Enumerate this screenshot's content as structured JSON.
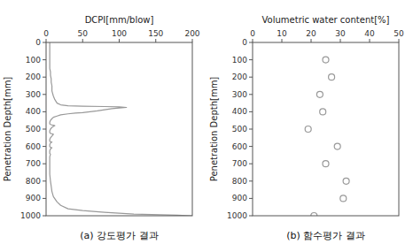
{
  "chart_data": [
    {
      "type": "line",
      "title": "(a)  강도평가  결과",
      "x_label": "DCPI[mm/blow]",
      "y_label": "Penetration Depth[mm]",
      "x": [
        5,
        5,
        5,
        5,
        5,
        5,
        5,
        6,
        6,
        7,
        7,
        8,
        8,
        10,
        12,
        15,
        20,
        30,
        50,
        80,
        100,
        110,
        100,
        90,
        80,
        70,
        60,
        50,
        40,
        30,
        20,
        15,
        10,
        8,
        6,
        5,
        5,
        5,
        6,
        8,
        10,
        12,
        8,
        6,
        5,
        5,
        6,
        8,
        10,
        8,
        6,
        5,
        5,
        6,
        8,
        6,
        5,
        5,
        6,
        8,
        6,
        5,
        5,
        6,
        5,
        5,
        5,
        5,
        5,
        5,
        6,
        7,
        8,
        10,
        15,
        20,
        30,
        50,
        80,
        120,
        180,
        200
      ],
      "values": [
        0,
        20,
        50,
        80,
        100,
        130,
        150,
        170,
        190,
        210,
        230,
        250,
        280,
        310,
        330,
        350,
        360,
        365,
        368,
        370,
        372,
        375,
        378,
        382,
        388,
        395,
        400,
        405,
        408,
        412,
        418,
        425,
        432,
        440,
        450,
        460,
        465,
        470,
        473,
        476,
        478,
        480,
        490,
        500,
        510,
        520,
        525,
        527,
        530,
        540,
        550,
        560,
        570,
        573,
        575,
        580,
        590,
        600,
        605,
        607,
        615,
        625,
        640,
        645,
        660,
        680,
        700,
        720,
        740,
        760,
        800,
        830,
        860,
        890,
        920,
        940,
        960,
        970,
        980,
        990,
        997,
        1000
      ],
      "color": "#999999",
      "xlim": [
        0,
        200
      ],
      "xticks": [
        0,
        50,
        100,
        150,
        200
      ],
      "ylim": [
        1000,
        0
      ],
      "yticks": [
        0,
        100,
        200,
        300,
        400,
        500,
        600,
        700,
        800,
        900,
        1000
      ],
      "grid": false
    },
    {
      "type": "scatter",
      "title": "(b)  함수평가  결과",
      "x_label": "Volumetric water content[%]",
      "y_label": "Penetration Depth[mm]",
      "x": [
        25,
        27,
        23,
        24,
        19,
        29,
        25,
        32,
        31,
        21
      ],
      "values": [
        100,
        200,
        300,
        400,
        500,
        600,
        700,
        800,
        900,
        1000
      ],
      "color": "#999999",
      "marker": "open-circle",
      "xlim": [
        0,
        50
      ],
      "xticks": [
        0,
        10,
        20,
        30,
        40,
        50
      ],
      "ylim": [
        1000,
        0
      ],
      "yticks": [
        0,
        100,
        200,
        300,
        400,
        500,
        600,
        700,
        800,
        900,
        1000
      ],
      "grid": false
    }
  ]
}
